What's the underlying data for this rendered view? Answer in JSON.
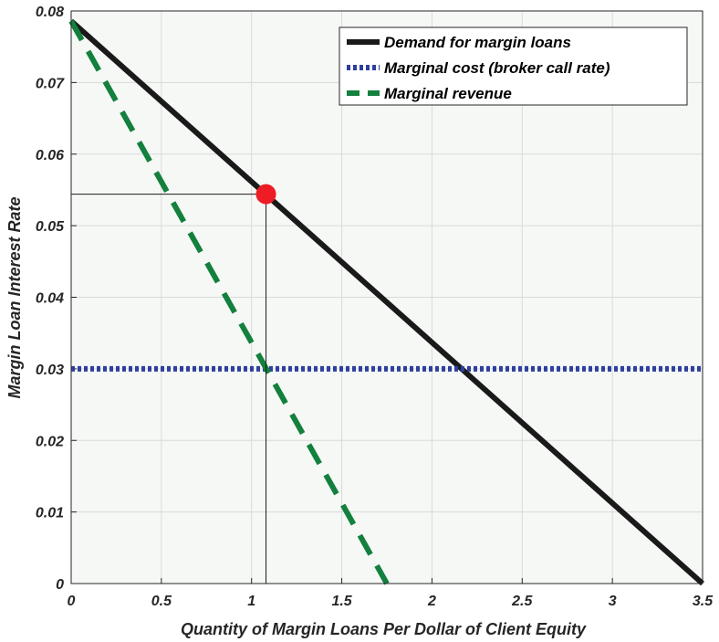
{
  "chart_data": {
    "type": "line",
    "title": "",
    "xlabel": "Quantity of Margin Loans Per Dollar of Client Equity",
    "ylabel": "Margin Loan Interest Rate",
    "xlim": [
      0,
      3.5
    ],
    "ylim": [
      0,
      0.08
    ],
    "grid": true,
    "legend_position": "top-right",
    "x_ticks": [
      "0",
      "0.5",
      "1",
      "1.5",
      "2",
      "2.5",
      "3",
      "3.5"
    ],
    "y_ticks": [
      "0",
      "0.01",
      "0.02",
      "0.03",
      "0.04",
      "0.05",
      "0.06",
      "0.07",
      "0.08"
    ],
    "series": [
      {
        "name": "Demand for margin loans",
        "style": "solid",
        "color": "#1a1a1a",
        "x": [
          0,
          3.5
        ],
        "y": [
          0.0786,
          0.0
        ]
      },
      {
        "name": "Marginal cost (broker call rate)",
        "style": "dotted",
        "color": "#2e3f9e",
        "x": [
          0,
          3.5
        ],
        "y": [
          0.03,
          0.03
        ]
      },
      {
        "name": "Marginal revenue",
        "style": "dashed",
        "color": "#13803d",
        "x": [
          0,
          1.75
        ],
        "y": [
          0.0786,
          0.0
        ]
      }
    ],
    "optimum_point": {
      "x": 1.08,
      "y": 0.0544,
      "color": "#ee1c25"
    },
    "guide_lines": [
      {
        "from": [
          0,
          0.0544
        ],
        "to": [
          1.08,
          0.0544
        ]
      },
      {
        "from": [
          1.08,
          0.0544
        ],
        "to": [
          1.08,
          0
        ]
      }
    ]
  }
}
